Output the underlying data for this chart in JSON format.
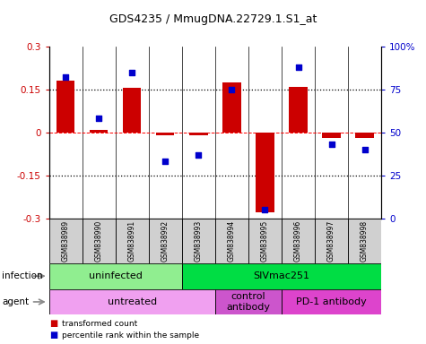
{
  "title": "GDS4235 / MmugDNA.22729.1.S1_at",
  "samples": [
    "GSM838989",
    "GSM838990",
    "GSM838991",
    "GSM838992",
    "GSM838993",
    "GSM838994",
    "GSM838995",
    "GSM838996",
    "GSM838997",
    "GSM838998"
  ],
  "red_bars": [
    0.18,
    0.01,
    0.155,
    -0.01,
    -0.01,
    0.175,
    -0.28,
    0.16,
    -0.02,
    -0.02
  ],
  "blue_dots": [
    82,
    58,
    85,
    33,
    37,
    75,
    5,
    88,
    43,
    40
  ],
  "ylim_left": [
    -0.3,
    0.3
  ],
  "ylim_right": [
    0,
    100
  ],
  "yticks_left": [
    -0.3,
    -0.15,
    0,
    0.15,
    0.3
  ],
  "yticks_right": [
    0,
    25,
    50,
    75,
    100
  ],
  "infection_groups": [
    {
      "label": "uninfected",
      "start": 0,
      "end": 4,
      "color": "#90ee90"
    },
    {
      "label": "SIVmac251",
      "start": 4,
      "end": 10,
      "color": "#00dd44"
    }
  ],
  "agent_groups": [
    {
      "label": "untreated",
      "start": 0,
      "end": 5,
      "color": "#f0a0f0"
    },
    {
      "label": "control\nantibody",
      "start": 5,
      "end": 7,
      "color": "#cc55cc"
    },
    {
      "label": "PD-1 antibody",
      "start": 7,
      "end": 10,
      "color": "#dd44cc"
    }
  ],
  "bar_color": "#cc0000",
  "dot_color": "#0000cc",
  "sample_bg": "#d0d0d0",
  "background_color": "#ffffff",
  "legend_items": [
    {
      "label": "transformed count",
      "color": "#cc0000"
    },
    {
      "label": "percentile rank within the sample",
      "color": "#0000cc"
    }
  ]
}
